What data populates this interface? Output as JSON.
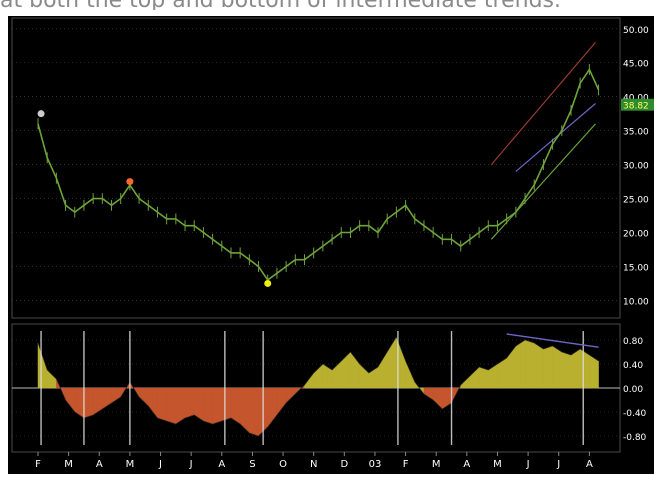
{
  "caption": "at both the top and bottom of intermediate trends.",
  "chart_data": {
    "type": "line",
    "colors": {
      "background": "#000000",
      "price_line": "#6fa33a",
      "grid": "#4a4a4a",
      "axis_text": "#ffffff",
      "osc_positive": "#b8b02e",
      "osc_negative": "#c4552c",
      "channel_upper": "#9a3a30",
      "channel_lower": "#66a23a",
      "channel_mid": "#6f66c8",
      "last_price_bg": "#2e8b2e",
      "marker_low": "#f0f000",
      "marker_high": "#ff6a2a"
    },
    "x_tick_labels": [
      "F",
      "M",
      "A",
      "M",
      "J",
      "J",
      "A",
      "S",
      "O",
      "N",
      "D",
      "03",
      "F",
      "M",
      "A",
      "M",
      "J",
      "J",
      "A"
    ],
    "price_axis": {
      "ticks": [
        "50.00",
        "45.00",
        "40.00",
        "35.00",
        "30.00",
        "25.00",
        "20.00",
        "15.00",
        "10.00"
      ],
      "ylim": [
        8,
        51
      ],
      "last_price": "38.82"
    },
    "oscillator_axis": {
      "ticks": [
        "0.80",
        "0.40",
        "0.00",
        "-0.40",
        "-0.80"
      ],
      "ylim": [
        -1.0,
        1.0
      ]
    },
    "price_series": {
      "x": [
        0,
        0.3,
        0.6,
        0.9,
        1.2,
        1.5,
        1.8,
        2.1,
        2.4,
        2.7,
        3.0,
        3.3,
        3.6,
        3.9,
        4.2,
        4.5,
        4.8,
        5.1,
        5.4,
        5.7,
        6.0,
        6.3,
        6.6,
        6.9,
        7.2,
        7.5,
        7.8,
        8.1,
        8.4,
        8.7,
        9.0,
        9.3,
        9.6,
        9.9,
        10.2,
        10.5,
        10.8,
        11.1,
        11.4,
        11.7,
        12.0,
        12.3,
        12.6,
        12.9,
        13.2,
        13.5,
        13.8,
        14.1,
        14.4,
        14.7,
        15.0,
        15.3,
        15.6,
        15.9,
        16.2,
        16.5,
        16.8,
        17.1,
        17.4,
        17.7,
        18.0,
        18.3
      ],
      "y": [
        36,
        31,
        28,
        24,
        23,
        24,
        25,
        25,
        24,
        25,
        27,
        25,
        24,
        23,
        22,
        22,
        21,
        21,
        20,
        19,
        18,
        17,
        17,
        16,
        15,
        13,
        14,
        15,
        16,
        16,
        17,
        18,
        19,
        20,
        20,
        21,
        21,
        20,
        22,
        23,
        24,
        22,
        21,
        20,
        19,
        19,
        18,
        19,
        20,
        21,
        21,
        22,
        23,
        25,
        27,
        30,
        33,
        35,
        38,
        42,
        44,
        41
      ]
    },
    "channel": {
      "upper": {
        "x": [
          14.8,
          18.2
        ],
        "y": [
          30,
          48
        ]
      },
      "lower": {
        "x": [
          14.8,
          18.2
        ],
        "y": [
          19,
          36
        ]
      },
      "middle": {
        "x": [
          15.6,
          18.2
        ],
        "y": [
          29,
          39
        ]
      }
    },
    "price_markers": [
      {
        "x": 0.1,
        "y": 37.5,
        "kind": "start"
      },
      {
        "x": 3.0,
        "y": 27.5,
        "kind": "high"
      },
      {
        "x": 7.5,
        "y": 12.5,
        "kind": "low"
      }
    ],
    "oscillator_series": {
      "x": [
        0,
        0.3,
        0.6,
        0.9,
        1.2,
        1.5,
        1.8,
        2.1,
        2.4,
        2.7,
        3.0,
        3.3,
        3.6,
        3.9,
        4.2,
        4.5,
        4.8,
        5.1,
        5.4,
        5.7,
        6.0,
        6.3,
        6.6,
        6.9,
        7.2,
        7.5,
        7.8,
        8.1,
        8.4,
        8.7,
        9.0,
        9.3,
        9.6,
        9.9,
        10.2,
        10.5,
        10.8,
        11.1,
        11.4,
        11.7,
        12.0,
        12.3,
        12.6,
        12.9,
        13.2,
        13.5,
        13.8,
        14.1,
        14.4,
        14.7,
        15.0,
        15.3,
        15.6,
        15.9,
        16.2,
        16.5,
        16.8,
        17.1,
        17.4,
        17.7,
        18.0,
        18.3
      ],
      "y": [
        0.75,
        0.3,
        0.15,
        -0.2,
        -0.4,
        -0.5,
        -0.45,
        -0.35,
        -0.25,
        -0.15,
        0.1,
        -0.15,
        -0.3,
        -0.5,
        -0.55,
        -0.6,
        -0.5,
        -0.45,
        -0.55,
        -0.6,
        -0.55,
        -0.5,
        -0.6,
        -0.75,
        -0.8,
        -0.65,
        -0.45,
        -0.25,
        -0.1,
        0.05,
        0.25,
        0.4,
        0.3,
        0.45,
        0.6,
        0.4,
        0.25,
        0.35,
        0.6,
        0.85,
        0.45,
        0.1,
        -0.1,
        -0.2,
        -0.35,
        -0.25,
        0.05,
        0.2,
        0.35,
        0.3,
        0.4,
        0.5,
        0.7,
        0.8,
        0.75,
        0.65,
        0.7,
        0.6,
        0.55,
        0.65,
        0.55,
        0.45
      ]
    },
    "oscillator_spikes": [
      0.1,
      1.5,
      3.0,
      6.1,
      7.35,
      11.75,
      13.5,
      17.8
    ],
    "oscillator_trendline": {
      "x": [
        15.3,
        18.3
      ],
      "y": [
        0.9,
        0.68
      ]
    }
  }
}
